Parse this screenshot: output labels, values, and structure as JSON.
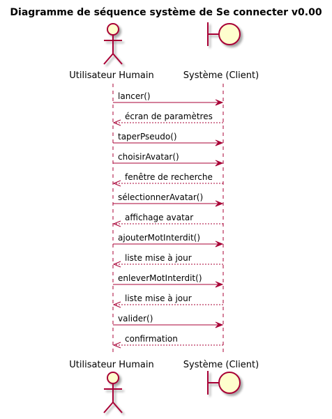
{
  "title": "Diagramme de séquence système de Se connecter v0.00",
  "participants": [
    {
      "name": "Utilisateur Humain",
      "kind": "actor"
    },
    {
      "name": "Système (Client)",
      "kind": "boundary"
    }
  ],
  "messages": [
    {
      "label": "lancer()",
      "from": 0,
      "to": 1,
      "type": "sync"
    },
    {
      "label": "écran de paramètres",
      "from": 1,
      "to": 0,
      "type": "return"
    },
    {
      "label": "taperPseudo()",
      "from": 0,
      "to": 1,
      "type": "sync"
    },
    {
      "label": "choisirAvatar()",
      "from": 0,
      "to": 1,
      "type": "sync"
    },
    {
      "label": "fenêtre de recherche",
      "from": 1,
      "to": 0,
      "type": "return"
    },
    {
      "label": "sélectionnerAvatar()",
      "from": 0,
      "to": 1,
      "type": "sync"
    },
    {
      "label": "affichage avatar",
      "from": 1,
      "to": 0,
      "type": "return"
    },
    {
      "label": "ajouterMotInterdit()",
      "from": 0,
      "to": 1,
      "type": "sync"
    },
    {
      "label": "liste mise à jour",
      "from": 1,
      "to": 0,
      "type": "return"
    },
    {
      "label": "enleverMotInterdit()",
      "from": 0,
      "to": 1,
      "type": "sync"
    },
    {
      "label": "liste mise à jour",
      "from": 1,
      "to": 0,
      "type": "return"
    },
    {
      "label": "valider()",
      "from": 0,
      "to": 1,
      "type": "sync"
    },
    {
      "label": "confirmation",
      "from": 1,
      "to": 0,
      "type": "return"
    }
  ],
  "colors": {
    "line": "#a80036",
    "fill": "#fefece",
    "text": "#000000",
    "shadow": "#c8c8c8"
  }
}
